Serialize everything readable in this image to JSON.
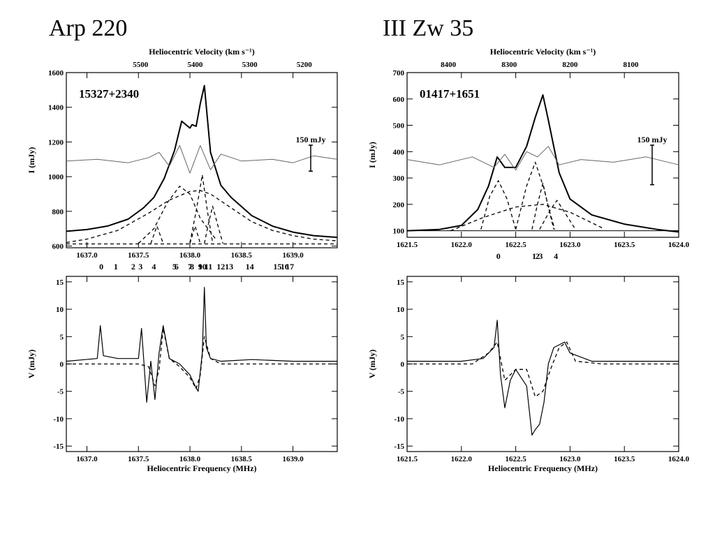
{
  "titles": {
    "left": "Arp 220",
    "right": "III Zw 35"
  },
  "chart_data": [
    {
      "type": "line",
      "panel": "arp220-stokes-I",
      "source_label": "15327+2340",
      "xlabel": "",
      "x2label": "Heliocentric Velocity (km s⁻¹)",
      "ylabel": "I (mJy)",
      "xlim": [
        1636.8,
        1639.43
      ],
      "ylim": [
        590,
        1600
      ],
      "xticks": [
        1637.0,
        1637.5,
        1638.0,
        1638.5,
        1639.0
      ],
      "xtick_labels": [
        "1637.0",
        "1637.5",
        "1638.0",
        "1638.5",
        "1639.0"
      ],
      "yticks": [
        600,
        800,
        1000,
        1200,
        1400,
        1600
      ],
      "x2ticks": [
        5500,
        5400,
        5300,
        5200
      ],
      "x2tick_freq": [
        1637.52,
        1638.05,
        1638.58,
        1639.11
      ],
      "scale_bar": {
        "label": "150 mJy",
        "value": 150
      },
      "components": {
        "labels": [
          "0",
          "1",
          "2",
          "3",
          "4",
          "5",
          "6",
          "7",
          "8",
          "9",
          "10",
          "11",
          "12",
          "13",
          "14",
          "15",
          "16",
          "17"
        ],
        "freq": [
          1637.14,
          1637.28,
          1637.45,
          1637.52,
          1637.65,
          1637.85,
          1637.87,
          1638.0,
          1638.02,
          1638.1,
          1638.12,
          1638.18,
          1638.3,
          1638.38,
          1638.58,
          1638.85,
          1638.92,
          1638.97
        ]
      },
      "series": [
        {
          "style": "solid-thick",
          "x": [
            1636.8,
            1637.0,
            1637.2,
            1637.4,
            1637.55,
            1637.65,
            1637.75,
            1637.85,
            1637.92,
            1638.0,
            1638.02,
            1638.06,
            1638.1,
            1638.14,
            1638.2,
            1638.3,
            1638.4,
            1638.6,
            1638.8,
            1639.0,
            1639.2,
            1639.43
          ],
          "y": [
            685,
            695,
            715,
            755,
            820,
            880,
            990,
            1150,
            1320,
            1280,
            1300,
            1290,
            1420,
            1525,
            1140,
            950,
            880,
            775,
            715,
            680,
            660,
            650
          ]
        },
        {
          "style": "dashed",
          "x": [
            1636.8,
            1637.0,
            1637.3,
            1637.6,
            1637.8,
            1638.0,
            1638.1,
            1638.2,
            1638.4,
            1638.6,
            1638.8,
            1639.0,
            1639.2,
            1639.43
          ],
          "y": [
            620,
            640,
            690,
            790,
            865,
            915,
            920,
            900,
            820,
            740,
            690,
            660,
            640,
            630
          ]
        },
        {
          "style": "dashed",
          "x": [
            1637.5,
            1637.65,
            1637.78,
            1637.9,
            1638.0,
            1638.1,
            1638.25
          ],
          "y": [
            615,
            700,
            850,
            945,
            900,
            760,
            640
          ]
        },
        {
          "style": "dashed",
          "x": [
            1638.0,
            1638.06,
            1638.12,
            1638.17,
            1638.22
          ],
          "y": [
            620,
            800,
            1010,
            800,
            620
          ]
        },
        {
          "style": "dashed",
          "x": [
            1638.14,
            1638.18,
            1638.22,
            1638.27,
            1638.32
          ],
          "y": [
            615,
            730,
            830,
            720,
            615
          ]
        },
        {
          "style": "dashed",
          "x": [
            1637.62,
            1637.68,
            1637.74
          ],
          "y": [
            615,
            715,
            615
          ]
        },
        {
          "style": "dashed",
          "x": [
            1638.0,
            1638.05,
            1638.1
          ],
          "y": [
            615,
            715,
            615
          ]
        },
        {
          "style": "dashed",
          "x": [
            1636.8,
            1639.43
          ],
          "y": [
            612,
            612
          ]
        },
        {
          "style": "residual",
          "x": [
            1636.8,
            1637.1,
            1637.4,
            1637.6,
            1637.7,
            1637.8,
            1637.9,
            1638.0,
            1638.1,
            1638.2,
            1638.3,
            1638.5,
            1638.8,
            1639.0,
            1639.2,
            1639.43
          ],
          "y": [
            1090,
            1100,
            1080,
            1110,
            1140,
            1060,
            1180,
            1020,
            1180,
            1040,
            1130,
            1090,
            1100,
            1080,
            1120,
            1100
          ]
        }
      ]
    },
    {
      "type": "line",
      "panel": "arp220-stokes-V",
      "xlabel": "Heliocentric Frequency (MHz)",
      "ylabel": "V (mJy)",
      "xlim": [
        1636.8,
        1639.43
      ],
      "ylim": [
        -16,
        16
      ],
      "xticks": [
        1637.0,
        1637.5,
        1638.0,
        1638.5,
        1639.0
      ],
      "xtick_labels": [
        "1637.0",
        "1637.5",
        "1638.0",
        "1638.5",
        "1639.0"
      ],
      "yticks": [
        -15,
        -10,
        -5,
        0,
        5,
        10,
        15
      ],
      "series": [
        {
          "style": "solid",
          "x": [
            1636.8,
            1637.1,
            1637.13,
            1637.16,
            1637.3,
            1637.5,
            1637.53,
            1637.58,
            1637.62,
            1637.66,
            1637.7,
            1637.74,
            1637.8,
            1637.9,
            1638.0,
            1638.05,
            1638.08,
            1638.12,
            1638.14,
            1638.16,
            1638.2,
            1638.3,
            1638.6,
            1639.0,
            1639.43
          ],
          "y": [
            0.5,
            1,
            7,
            1.5,
            1,
            1,
            6.5,
            -7,
            0.5,
            -6.5,
            2,
            7,
            1,
            0,
            -2,
            -4,
            -5,
            2,
            14,
            3,
            1,
            0.5,
            0.8,
            0.5,
            0.5
          ]
        },
        {
          "style": "dashed",
          "x": [
            1636.8,
            1637.1,
            1637.5,
            1637.6,
            1637.66,
            1637.7,
            1637.74,
            1637.8,
            1637.9,
            1638.0,
            1638.06,
            1638.1,
            1638.14,
            1638.2,
            1638.3,
            1639.43
          ],
          "y": [
            0,
            0,
            0,
            -0.5,
            -4,
            -1,
            6.5,
            1,
            -0.5,
            -2.5,
            -4.5,
            -2,
            5,
            1,
            0,
            0
          ]
        }
      ]
    },
    {
      "type": "line",
      "panel": "iiizw35-stokes-I",
      "source_label": "01417+1651",
      "xlabel": "",
      "x2label": "Heliocentric Velocity (km s⁻¹)",
      "ylabel": "I (mJy)",
      "xlim": [
        1621.5,
        1624.0
      ],
      "ylim": [
        75,
        700
      ],
      "xticks": [
        1621.5,
        1622.0,
        1622.5,
        1623.0,
        1623.5,
        1624.0
      ],
      "xtick_labels": [
        "1621.5",
        "1622.0",
        "1622.5",
        "1623.0",
        "1623.5",
        "1624.0"
      ],
      "yticks": [
        100,
        200,
        300,
        400,
        500,
        600,
        700
      ],
      "x2ticks": [
        8400,
        8300,
        8200,
        8100
      ],
      "x2tick_freq": [
        1621.88,
        1622.44,
        1623.0,
        1623.56
      ],
      "scale_bar": {
        "label": "150 mJy",
        "value": 150
      },
      "components": {
        "labels": [
          "0",
          "1",
          "2",
          "3",
          "4"
        ],
        "freq": [
          1622.34,
          1622.67,
          1622.7,
          1622.73,
          1622.87
        ]
      },
      "series": [
        {
          "style": "solid-thick",
          "x": [
            1621.5,
            1621.8,
            1622.0,
            1622.15,
            1622.25,
            1622.33,
            1622.4,
            1622.5,
            1622.6,
            1622.68,
            1622.75,
            1622.8,
            1622.9,
            1623.0,
            1623.2,
            1623.5,
            1623.8,
            1624.0
          ],
          "y": [
            100,
            105,
            120,
            180,
            270,
            380,
            340,
            340,
            420,
            530,
            615,
            520,
            320,
            220,
            160,
            125,
            105,
            95
          ]
        },
        {
          "style": "dashed",
          "x": [
            1622.18,
            1622.26,
            1622.34,
            1622.42,
            1622.5
          ],
          "y": [
            105,
            230,
            290,
            220,
            105
          ]
        },
        {
          "style": "dashed",
          "x": [
            1622.5,
            1622.6,
            1622.68,
            1622.76,
            1622.85
          ],
          "y": [
            105,
            270,
            360,
            260,
            105
          ]
        },
        {
          "style": "dashed",
          "x": [
            1622.65,
            1622.7,
            1622.75,
            1622.8,
            1622.86
          ],
          "y": [
            105,
            200,
            280,
            190,
            105
          ]
        },
        {
          "style": "dashed",
          "x": [
            1622.72,
            1622.82,
            1622.88,
            1622.95,
            1623.05
          ],
          "y": [
            105,
            180,
            215,
            170,
            105
          ]
        },
        {
          "style": "dashed",
          "x": [
            1621.9,
            1622.2,
            1622.5,
            1622.75,
            1623.0,
            1623.3
          ],
          "y": [
            100,
            150,
            190,
            200,
            170,
            110
          ]
        },
        {
          "style": "solid-thin",
          "x": [
            1621.5,
            1624.0
          ],
          "y": [
            100,
            100
          ]
        },
        {
          "style": "residual",
          "x": [
            1621.5,
            1621.8,
            1622.1,
            1622.3,
            1622.4,
            1622.5,
            1622.6,
            1622.7,
            1622.8,
            1622.9,
            1623.1,
            1623.4,
            1623.7,
            1624.0
          ],
          "y": [
            370,
            350,
            380,
            340,
            390,
            330,
            400,
            380,
            420,
            350,
            370,
            360,
            380,
            350
          ]
        }
      ]
    },
    {
      "type": "line",
      "panel": "iiizw35-stokes-V",
      "xlabel": "Heliocentric Frequency (MHz)",
      "ylabel": "V (mJy)",
      "xlim": [
        1621.5,
        1624.0
      ],
      "ylim": [
        -16,
        16
      ],
      "xticks": [
        1621.5,
        1622.0,
        1622.5,
        1623.0,
        1623.5,
        1624.0
      ],
      "xtick_labels": [
        "1621.5",
        "1622.0",
        "1622.5",
        "1623.0",
        "1623.5",
        "1624.0"
      ],
      "yticks": [
        -15,
        -10,
        -5,
        0,
        5,
        10,
        15
      ],
      "series": [
        {
          "style": "solid",
          "x": [
            1621.5,
            1622.0,
            1622.2,
            1622.3,
            1622.33,
            1622.36,
            1622.4,
            1622.45,
            1622.5,
            1622.6,
            1622.65,
            1622.68,
            1622.72,
            1622.76,
            1622.8,
            1622.85,
            1622.95,
            1623.0,
            1623.2,
            1623.6,
            1624.0
          ],
          "y": [
            0.5,
            0.5,
            1,
            3,
            8,
            -2,
            -8,
            -3,
            -1,
            -4,
            -13,
            -12,
            -11,
            -7,
            0,
            3,
            4,
            2,
            0.5,
            0.5,
            0.5
          ]
        },
        {
          "style": "dashed",
          "x": [
            1621.5,
            1622.1,
            1622.25,
            1622.33,
            1622.4,
            1622.5,
            1622.6,
            1622.68,
            1622.75,
            1622.82,
            1622.9,
            1622.97,
            1623.05,
            1623.3,
            1624.0
          ],
          "y": [
            0,
            0,
            2,
            4,
            -3,
            -1,
            -1,
            -6,
            -5,
            -1,
            3,
            4,
            0.5,
            0,
            0
          ]
        }
      ]
    }
  ]
}
